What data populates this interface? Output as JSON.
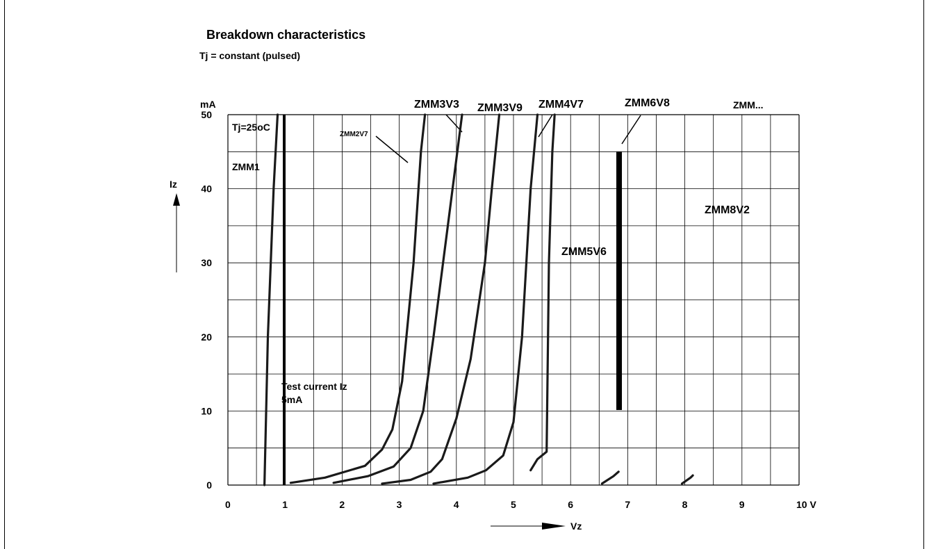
{
  "chart_data": {
    "type": "line",
    "title": "Breakdown characteristics",
    "subtitle": "Tj = constant (pulsed)",
    "xlabel": "Vz",
    "ylabel": "Iz",
    "y_unit": "mA",
    "xlim": [
      0,
      10
    ],
    "ylim": [
      0,
      50
    ],
    "x_ticks": [
      "0",
      "1",
      "2",
      "3",
      "4",
      "5",
      "6",
      "7",
      "8",
      "9",
      "10 V"
    ],
    "y_ticks": [
      "0",
      "10",
      "20",
      "30",
      "40",
      "50"
    ],
    "grid": true,
    "annotations": {
      "temperature": "Tj=25oC",
      "test_current": "Test current Iz",
      "test_current_value": "5mA"
    },
    "series": [
      {
        "name": "ZMM1",
        "points": [
          [
            0.64,
            0
          ],
          [
            0.7,
            20
          ],
          [
            0.8,
            40
          ],
          [
            0.87,
            50
          ]
        ]
      },
      {
        "name": "ZMM2V7",
        "points": [
          [
            1.1,
            0.3
          ],
          [
            1.7,
            1.0
          ],
          [
            2.4,
            2.6
          ],
          [
            2.7,
            4.8
          ],
          [
            2.88,
            7.5
          ],
          [
            3.05,
            14
          ],
          [
            3.25,
            30
          ],
          [
            3.38,
            45
          ],
          [
            3.45,
            50
          ]
        ]
      },
      {
        "name": "ZMM3V3",
        "points": [
          [
            1.85,
            0.3
          ],
          [
            2.45,
            1.2
          ],
          [
            2.9,
            2.5
          ],
          [
            3.2,
            5.0
          ],
          [
            3.42,
            10
          ],
          [
            3.6,
            20
          ],
          [
            3.85,
            35
          ],
          [
            4.1,
            50
          ]
        ]
      },
      {
        "name": "ZMM3V9",
        "points": [
          [
            2.7,
            0.2
          ],
          [
            3.2,
            0.7
          ],
          [
            3.55,
            1.8
          ],
          [
            3.75,
            3.5
          ],
          [
            4.0,
            9.0
          ],
          [
            4.25,
            17
          ],
          [
            4.5,
            30
          ],
          [
            4.62,
            40
          ],
          [
            4.75,
            50
          ]
        ]
      },
      {
        "name": "ZMM4V7",
        "points": [
          [
            3.6,
            0.2
          ],
          [
            4.2,
            1.0
          ],
          [
            4.52,
            2.0
          ],
          [
            4.82,
            4.0
          ],
          [
            5.0,
            8.5
          ],
          [
            5.15,
            20
          ],
          [
            5.3,
            40
          ],
          [
            5.42,
            50
          ]
        ]
      },
      {
        "name": "ZMM5V6",
        "points": [
          [
            5.3,
            2.0
          ],
          [
            5.42,
            3.5
          ],
          [
            5.58,
            4.5
          ],
          [
            5.62,
            30
          ],
          [
            5.68,
            45
          ],
          [
            5.72,
            50
          ]
        ]
      },
      {
        "name": "ZMM6V8",
        "points": [
          [
            6.55,
            0.2
          ],
          [
            6.75,
            1.2
          ],
          [
            6.84,
            1.8
          ]
        ]
      },
      {
        "name": "ZMM8V2",
        "points": [
          [
            7.95,
            0.2
          ],
          [
            8.1,
            1.0
          ],
          [
            8.14,
            1.3
          ]
        ]
      }
    ],
    "series_labels": [
      "ZMM1",
      "ZMM2V7",
      "ZMM3V3",
      "ZMM3V9",
      "ZMM4V7",
      "ZMM5V6",
      "ZMM6V8",
      "ZMM...",
      "ZMM8V2"
    ]
  }
}
